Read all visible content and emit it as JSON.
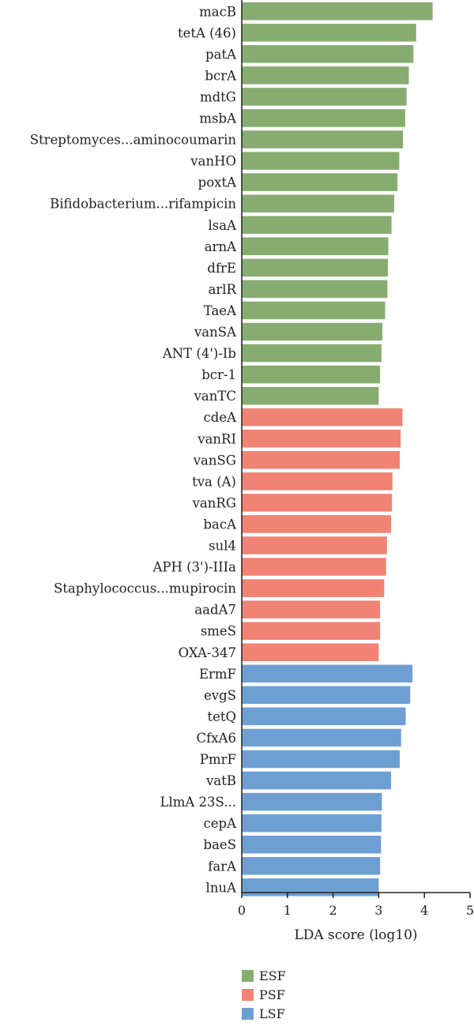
{
  "chart_data": {
    "type": "bar",
    "orientation": "horizontal",
    "xlabel": "LDA score (log10)",
    "xlim": [
      0,
      5
    ],
    "xticks": [
      0,
      1,
      2,
      3,
      4,
      5
    ],
    "grid": false,
    "legend_position": "bottom-left",
    "groups": [
      {
        "name": "ESF",
        "color": "#86AD6F"
      },
      {
        "name": "PSF",
        "color": "#F08373"
      },
      {
        "name": "LSF",
        "color": "#6E9FD3"
      }
    ],
    "bars": [
      {
        "label": "macB",
        "value": 4.18,
        "group": "ESF"
      },
      {
        "label": "tetA (46)",
        "value": 3.82,
        "group": "ESF"
      },
      {
        "label": "patA",
        "value": 3.76,
        "group": "ESF"
      },
      {
        "label": "bcrA",
        "value": 3.66,
        "group": "ESF"
      },
      {
        "label": "mdtG",
        "value": 3.61,
        "group": "ESF"
      },
      {
        "label": "msbA",
        "value": 3.58,
        "group": "ESF"
      },
      {
        "label": "Streptomyces...aminocoumarin",
        "value": 3.53,
        "group": "ESF"
      },
      {
        "label": "vanHO",
        "value": 3.45,
        "group": "ESF"
      },
      {
        "label": "poxtA",
        "value": 3.41,
        "group": "ESF"
      },
      {
        "label": "Bifidobacterium...rifampicin",
        "value": 3.34,
        "group": "ESF"
      },
      {
        "label": "lsaA",
        "value": 3.28,
        "group": "ESF"
      },
      {
        "label": "arnA",
        "value": 3.21,
        "group": "ESF"
      },
      {
        "label": "dfrE",
        "value": 3.2,
        "group": "ESF"
      },
      {
        "label": "arlR",
        "value": 3.19,
        "group": "ESF"
      },
      {
        "label": "TaeA",
        "value": 3.14,
        "group": "ESF"
      },
      {
        "label": "vanSA",
        "value": 3.08,
        "group": "ESF"
      },
      {
        "label": "ANT (4')-Ib",
        "value": 3.06,
        "group": "ESF"
      },
      {
        "label": "bcr-1",
        "value": 3.03,
        "group": "ESF"
      },
      {
        "label": "vanTC",
        "value": 3.0,
        "group": "ESF"
      },
      {
        "label": "cdeA",
        "value": 3.52,
        "group": "PSF"
      },
      {
        "label": "vanRI",
        "value": 3.48,
        "group": "PSF"
      },
      {
        "label": "vanSG",
        "value": 3.46,
        "group": "PSF"
      },
      {
        "label": "tva (A)",
        "value": 3.3,
        "group": "PSF"
      },
      {
        "label": "vanRG",
        "value": 3.29,
        "group": "PSF"
      },
      {
        "label": "bacA",
        "value": 3.27,
        "group": "PSF"
      },
      {
        "label": "sul4",
        "value": 3.18,
        "group": "PSF"
      },
      {
        "label": "APH (3')-IIIa",
        "value": 3.16,
        "group": "PSF"
      },
      {
        "label": "Staphylococcus...mupirocin",
        "value": 3.12,
        "group": "PSF"
      },
      {
        "label": "aadA7",
        "value": 3.03,
        "group": "PSF"
      },
      {
        "label": "smeS",
        "value": 3.03,
        "group": "PSF"
      },
      {
        "label": "OXA-347",
        "value": 3.0,
        "group": "PSF"
      },
      {
        "label": "ErmF",
        "value": 3.74,
        "group": "LSF"
      },
      {
        "label": "evgS",
        "value": 3.69,
        "group": "LSF"
      },
      {
        "label": "tetQ",
        "value": 3.59,
        "group": "LSF"
      },
      {
        "label": "CfxA6",
        "value": 3.49,
        "group": "LSF"
      },
      {
        "label": "PmrF",
        "value": 3.46,
        "group": "LSF"
      },
      {
        "label": "vatB",
        "value": 3.27,
        "group": "LSF"
      },
      {
        "label": "LlmA 23S...",
        "value": 3.07,
        "group": "LSF"
      },
      {
        "label": "cepA",
        "value": 3.06,
        "group": "LSF"
      },
      {
        "label": "baeS",
        "value": 3.05,
        "group": "LSF"
      },
      {
        "label": "farA",
        "value": 3.03,
        "group": "LSF"
      },
      {
        "label": "lnuA",
        "value": 3.0,
        "group": "LSF"
      }
    ]
  }
}
